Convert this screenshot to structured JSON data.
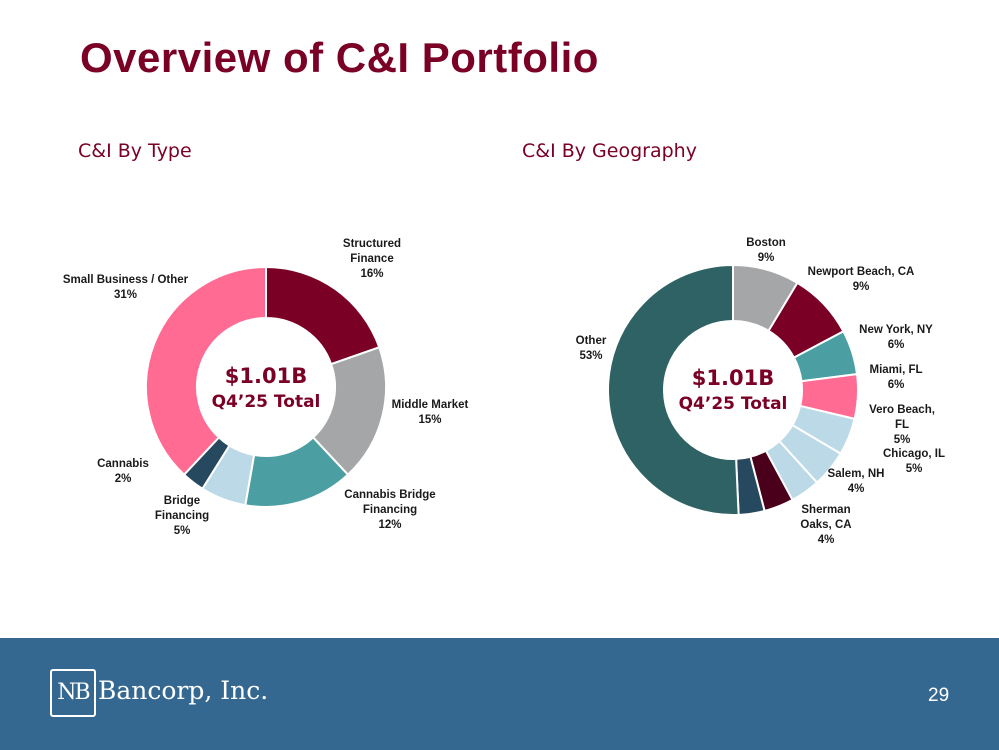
{
  "page": {
    "title": "Overview of C&I Portfolio",
    "page_number": "29",
    "logo_mark": "NB",
    "logo_text": "Bancorp, Inc."
  },
  "colors": {
    "title": "#7a0026",
    "footer": "#356890"
  },
  "chart_data": [
    {
      "type": "pie",
      "variant": "donut",
      "title": "C&I By Type",
      "center_value": "$1.01B",
      "center_label": "Q4’25 Total",
      "slices": [
        {
          "label": "Structured Finance",
          "label_lines": [
            "Structured",
            "Finance"
          ],
          "pct_label": "16%",
          "value": 16,
          "color": "#7a0026"
        },
        {
          "label": "Middle Market",
          "label_lines": [
            "Middle Market"
          ],
          "pct_label": "15%",
          "value": 15,
          "color": "#a5a6a8"
        },
        {
          "label": "Cannabis Bridge Financing",
          "label_lines": [
            "Cannabis Bridge",
            "Financing"
          ],
          "pct_label": "12%",
          "value": 12,
          "color": "#4b9fa3"
        },
        {
          "label": "Bridge Financing",
          "label_lines": [
            "Bridge",
            "Financing"
          ],
          "pct_label": "5%",
          "value": 5,
          "color": "#bcd9e8"
        },
        {
          "label": "Cannabis",
          "label_lines": [
            "Cannabis"
          ],
          "pct_label": "2%",
          "value": 2.5,
          "color": "#26495f"
        },
        {
          "label": "Small Business / Other",
          "label_lines": [
            "Small Business / Other"
          ],
          "pct_label": "31%",
          "value": 31,
          "color": "#ff6b93"
        }
      ]
    },
    {
      "type": "pie",
      "variant": "donut",
      "title": "C&I By Geography",
      "center_value": "$1.01B",
      "center_label": "Q4’25 Total",
      "slices": [
        {
          "label": "Boston",
          "label_lines": [
            "Boston"
          ],
          "pct_label": "9%",
          "value": 9,
          "color": "#a5a6a8"
        },
        {
          "label": "Newport Beach, CA",
          "label_lines": [
            "Newport Beach, CA"
          ],
          "pct_label": "9%",
          "value": 9,
          "color": "#7a0026"
        },
        {
          "label": "New York, NY",
          "label_lines": [
            "New York, NY"
          ],
          "pct_label": "6%",
          "value": 6,
          "color": "#4b9fa3"
        },
        {
          "label": "Miami, FL",
          "label_lines": [
            "Miami, FL"
          ],
          "pct_label": "6%",
          "value": 6,
          "color": "#ff6b93"
        },
        {
          "label": "Vero Beach, FL",
          "label_lines": [
            "Vero Beach,",
            "FL"
          ],
          "pct_label": "5%",
          "value": 5,
          "color": "#bcd9e8"
        },
        {
          "label": "Chicago, IL",
          "label_lines": [
            "Chicago, IL"
          ],
          "pct_label": "5%",
          "value": 5,
          "color": "#bcd9e8"
        },
        {
          "label": "Salem, NH",
          "label_lines": [
            "Salem, NH"
          ],
          "pct_label": "4%",
          "value": 4,
          "color": "#bcd9e8"
        },
        {
          "label": "Sherman Oaks, CA",
          "label_lines": [
            "Sherman",
            "Oaks, CA"
          ],
          "pct_label": "4%",
          "value": 4,
          "color": "#4a001b"
        },
        {
          "label": "Unlabeled",
          "label_lines": [],
          "pct_label": "",
          "value": 3.5,
          "color": "#26495f"
        },
        {
          "label": "Other",
          "label_lines": [
            "Other"
          ],
          "pct_label": "53%",
          "value": 53,
          "color": "#2e6264"
        }
      ]
    }
  ]
}
